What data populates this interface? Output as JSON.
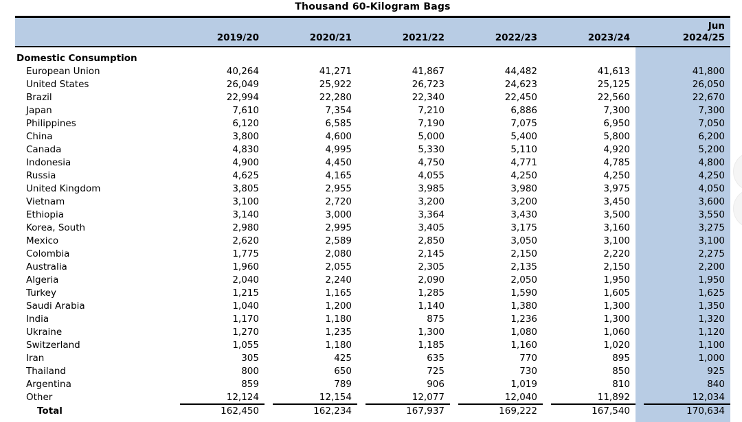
{
  "title": "Thousand 60-Kilogram Bags",
  "header": {
    "columns": [
      {
        "top": "",
        "year": "2019/20"
      },
      {
        "top": "",
        "year": "2020/21"
      },
      {
        "top": "",
        "year": "2021/22"
      },
      {
        "top": "",
        "year": "2022/23"
      },
      {
        "top": "",
        "year": "2023/24"
      },
      {
        "top": "Jun",
        "year": "2024/25"
      }
    ]
  },
  "section_label": "Domestic Consumption",
  "rows": [
    {
      "label": "European Union",
      "values": [
        "40,264",
        "41,271",
        "41,867",
        "44,482",
        "41,613",
        "41,800"
      ]
    },
    {
      "label": "United States",
      "values": [
        "26,049",
        "25,922",
        "26,723",
        "24,623",
        "25,125",
        "26,050"
      ]
    },
    {
      "label": "Brazil",
      "values": [
        "22,994",
        "22,280",
        "22,340",
        "22,450",
        "22,560",
        "22,670"
      ]
    },
    {
      "label": "Japan",
      "values": [
        "7,610",
        "7,354",
        "7,210",
        "6,886",
        "7,300",
        "7,300"
      ]
    },
    {
      "label": "Philippines",
      "values": [
        "6,120",
        "6,585",
        "7,190",
        "7,075",
        "6,950",
        "7,050"
      ]
    },
    {
      "label": "China",
      "values": [
        "3,800",
        "4,600",
        "5,000",
        "5,400",
        "5,800",
        "6,200"
      ]
    },
    {
      "label": "Canada",
      "values": [
        "4,830",
        "4,995",
        "5,330",
        "5,110",
        "4,920",
        "5,200"
      ]
    },
    {
      "label": "Indonesia",
      "values": [
        "4,900",
        "4,450",
        "4,750",
        "4,771",
        "4,785",
        "4,800"
      ]
    },
    {
      "label": "Russia",
      "values": [
        "4,625",
        "4,165",
        "4,055",
        "4,250",
        "4,250",
        "4,250"
      ]
    },
    {
      "label": "United Kingdom",
      "values": [
        "3,805",
        "2,955",
        "3,985",
        "3,980",
        "3,975",
        "4,050"
      ]
    },
    {
      "label": "Vietnam",
      "values": [
        "3,100",
        "2,720",
        "3,200",
        "3,200",
        "3,450",
        "3,600"
      ]
    },
    {
      "label": "Ethiopia",
      "values": [
        "3,140",
        "3,000",
        "3,364",
        "3,430",
        "3,500",
        "3,550"
      ]
    },
    {
      "label": "Korea, South",
      "values": [
        "2,980",
        "2,995",
        "3,405",
        "3,175",
        "3,160",
        "3,275"
      ]
    },
    {
      "label": "Mexico",
      "values": [
        "2,620",
        "2,589",
        "2,850",
        "3,050",
        "3,100",
        "3,100"
      ]
    },
    {
      "label": "Colombia",
      "values": [
        "1,775",
        "2,080",
        "2,145",
        "2,150",
        "2,220",
        "2,275"
      ]
    },
    {
      "label": "Australia",
      "values": [
        "1,960",
        "2,055",
        "2,305",
        "2,135",
        "2,150",
        "2,200"
      ]
    },
    {
      "label": "Algeria",
      "values": [
        "2,040",
        "2,240",
        "2,090",
        "2,050",
        "1,950",
        "1,950"
      ]
    },
    {
      "label": "Turkey",
      "values": [
        "1,215",
        "1,165",
        "1,285",
        "1,590",
        "1,605",
        "1,625"
      ]
    },
    {
      "label": "Saudi Arabia",
      "values": [
        "1,040",
        "1,200",
        "1,140",
        "1,380",
        "1,300",
        "1,350"
      ]
    },
    {
      "label": "India",
      "values": [
        "1,170",
        "1,180",
        "875",
        "1,236",
        "1,300",
        "1,320"
      ]
    },
    {
      "label": "Ukraine",
      "values": [
        "1,270",
        "1,235",
        "1,300",
        "1,080",
        "1,060",
        "1,120"
      ]
    },
    {
      "label": "Switzerland",
      "values": [
        "1,055",
        "1,180",
        "1,185",
        "1,160",
        "1,020",
        "1,100"
      ]
    },
    {
      "label": "Iran",
      "values": [
        "305",
        "425",
        "635",
        "770",
        "895",
        "1,000"
      ]
    },
    {
      "label": "Thailand",
      "values": [
        "800",
        "650",
        "725",
        "730",
        "850",
        "925"
      ]
    },
    {
      "label": "Argentina",
      "values": [
        "859",
        "789",
        "906",
        "1,019",
        "810",
        "840"
      ]
    },
    {
      "label": "Other",
      "values": [
        "12,124",
        "12,154",
        "12,077",
        "12,040",
        "11,892",
        "12,034"
      ]
    }
  ],
  "total_row": {
    "label": "Total",
    "values": [
      "162,450",
      "162,234",
      "167,937",
      "169,222",
      "167,540",
      "170,634"
    ]
  },
  "colors": {
    "header_band_bg": "#b8cce4",
    "highlight_column_bg": "#b8cce4",
    "rule_color": "#000000",
    "text_color": "#000000"
  }
}
